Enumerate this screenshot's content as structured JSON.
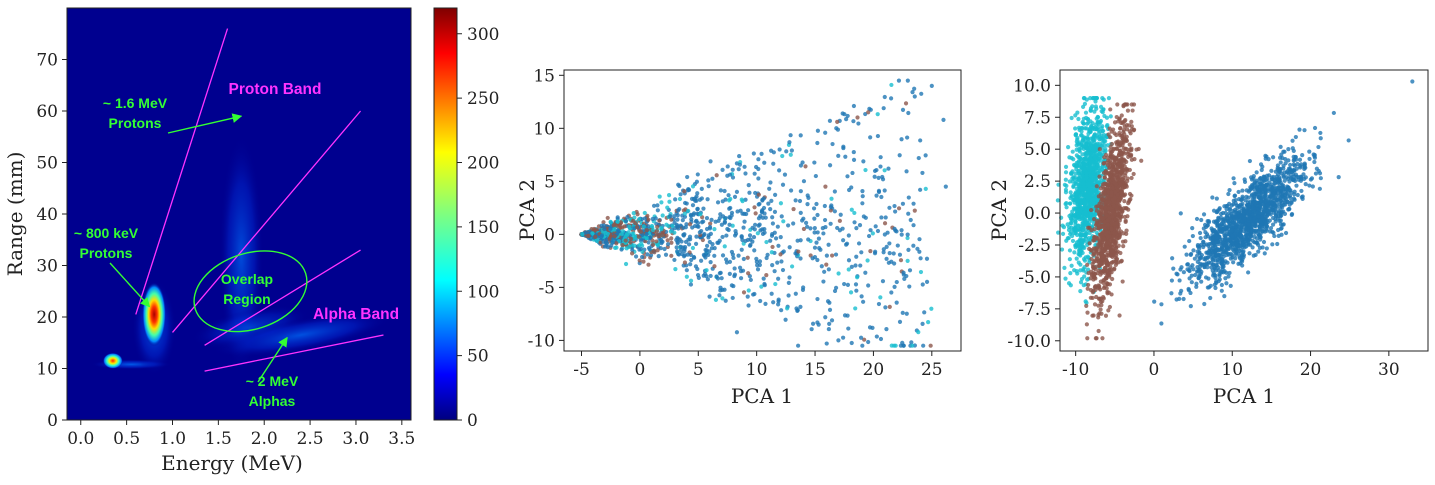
{
  "chart_data": [
    {
      "type": "heatmap",
      "title": "",
      "xlabel": "Energy (MeV)",
      "ylabel": "Range (mm)",
      "xlim": [
        -0.15,
        3.6
      ],
      "ylim": [
        0,
        80
      ],
      "xticks": [
        "0.0",
        "0.5",
        "1.0",
        "1.5",
        "2.0",
        "2.5",
        "3.0",
        "3.5"
      ],
      "yticks": [
        "0",
        "10",
        "20",
        "30",
        "40",
        "50",
        "60",
        "70"
      ],
      "colorbar": {
        "min": 0,
        "max": 320,
        "ticks": [
          "0",
          "50",
          "100",
          "150",
          "200",
          "250",
          "300"
        ],
        "colormap": "jet"
      },
      "hotspots": [
        {
          "energy": 0.8,
          "range": 20.5,
          "peak_count": 320
        },
        {
          "energy": 0.35,
          "range": 11.5,
          "peak_count": 240
        },
        {
          "energy": 1.75,
          "range": 30,
          "peak_count": 40
        },
        {
          "energy": 2.3,
          "range": 17,
          "peak_count": 35
        }
      ],
      "band_lines": [
        {
          "from": [
            0.6,
            20.5
          ],
          "to": [
            1.6,
            76
          ]
        },
        {
          "from": [
            1.0,
            17
          ],
          "to": [
            3.05,
            60
          ]
        },
        {
          "from": [
            1.35,
            14.5
          ],
          "to": [
            3.05,
            33
          ]
        },
        {
          "from": [
            1.35,
            9.5
          ],
          "to": [
            3.3,
            16.5
          ]
        }
      ],
      "overlap_ellipse": {
        "center_energy": 1.85,
        "center_range": 25,
        "label_lines": [
          "Overlap",
          "Region"
        ]
      },
      "annotations": [
        {
          "lines": [
            "~ 1.6 MeV",
            "Protons"
          ],
          "color": "#33ff33",
          "arrow_to": [
            1.75,
            59
          ]
        },
        {
          "lines": [
            "~ 800 keV",
            "Protons"
          ],
          "color": "#33ff33",
          "arrow_to": [
            0.75,
            22
          ]
        },
        {
          "lines": [
            "~ 2 MeV",
            "Alphas"
          ],
          "color": "#33ff33",
          "arrow_to": [
            2.25,
            16
          ]
        }
      ],
      "band_labels": [
        {
          "text": "Proton Band",
          "color": "#ff33ff"
        },
        {
          "text": "Alpha Band",
          "color": "#ff33ff"
        }
      ]
    },
    {
      "type": "scatter",
      "title": "",
      "xlabel": "PCA 1",
      "ylabel": "PCA 2",
      "xlim": [
        -6.5,
        27.5
      ],
      "ylim": [
        -11,
        15.5
      ],
      "xticks": [
        "-5",
        "0",
        "5",
        "10",
        "15",
        "20",
        "25"
      ],
      "yticks": [
        "-10",
        "-5",
        "0",
        "5",
        "10",
        "15"
      ],
      "series_colors": [
        "#1f77b4",
        "#8c564b",
        "#17becf"
      ],
      "series_shape": "cone from (-5,0) opening to the right; upper arm reaching (25,14), lower arm reaching (17,-10)"
    },
    {
      "type": "scatter",
      "title": "",
      "xlabel": "PCA 1",
      "ylabel": "PCA 2",
      "xlim": [
        -12,
        35
      ],
      "ylim": [
        -10.8,
        11.2
      ],
      "xticks": [
        "-10",
        "0",
        "10",
        "20",
        "30"
      ],
      "yticks": [
        "-10.0",
        "-7.5",
        "-5.0",
        "-2.5",
        "0.0",
        "2.5",
        "5.0",
        "7.5",
        "10.0"
      ],
      "series_colors": [
        "#1f77b4",
        "#8c564b",
        "#17becf"
      ],
      "clusters": [
        {
          "color": "#17becf",
          "center": [
            -8.5,
            2
          ],
          "spread": [
            1.3,
            3.3
          ]
        },
        {
          "color": "#8c564b",
          "center": [
            -5.5,
            0
          ],
          "spread": [
            1.2,
            3.5
          ]
        },
        {
          "color": "#1f77b4",
          "center": [
            12,
            -0.5
          ],
          "spread": [
            4.0,
            2.2
          ]
        }
      ]
    }
  ]
}
